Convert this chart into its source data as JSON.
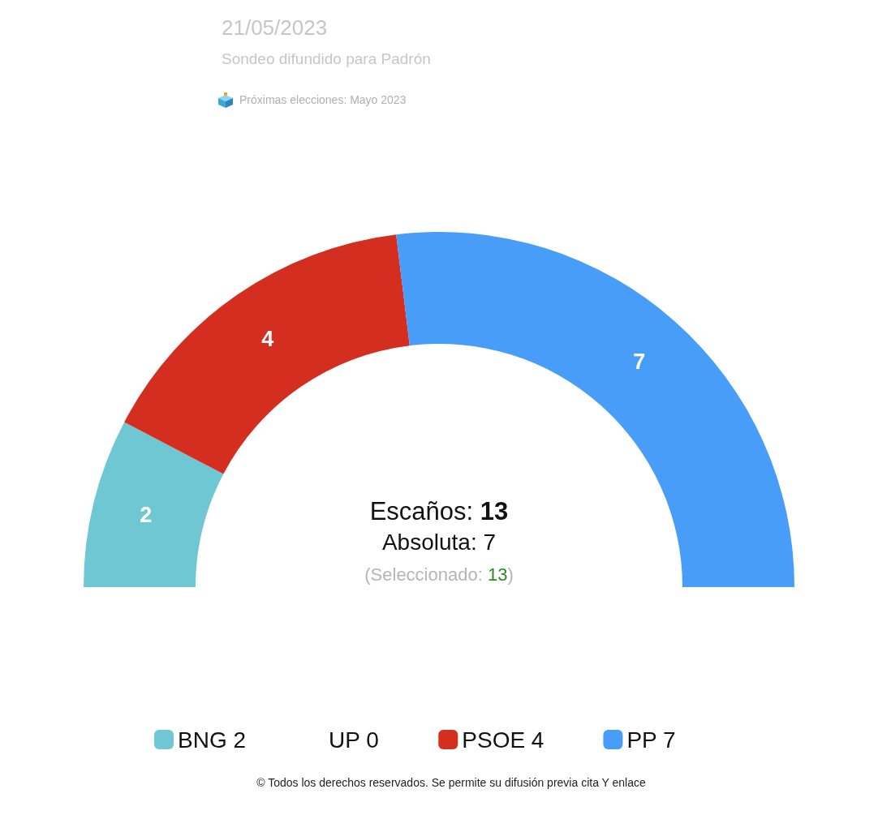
{
  "chart_data": {
    "type": "donut",
    "title": "21/05/2023",
    "subtitle": "Sondeo difundido para Padrón",
    "categories": [
      "BNG",
      "UP",
      "PSOE",
      "PP"
    ],
    "values": [
      2,
      0,
      4,
      7
    ],
    "colors": [
      "#6fc7d3",
      null,
      "#d42e21",
      "#479df8"
    ],
    "value_labels": [
      "2",
      "0",
      "4",
      "7"
    ],
    "legend": "bottom",
    "annotations": [
      "Próximas elecciones: Mayo 2023",
      "Escaños: 13",
      "Absoluta: 7",
      "(Seleccionado: 13)",
      "© Todos los derechos reservados. Se permite su difusión previa cita Y enlace"
    ]
  }
}
